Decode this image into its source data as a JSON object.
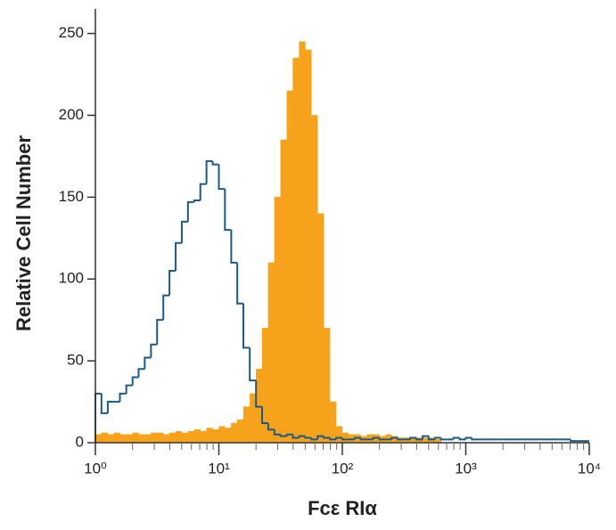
{
  "chart_data": {
    "type": "histogram",
    "xlabel": "Fcε RIα",
    "ylabel": "Relative Cell Number",
    "xscale": "log",
    "xlim": [
      1,
      10000
    ],
    "ylim": [
      0,
      265
    ],
    "yticks": [
      0,
      50,
      100,
      150,
      200,
      250
    ],
    "xticks": [
      {
        "value": 1,
        "label": "10⁰"
      },
      {
        "value": 10,
        "label": "10¹"
      },
      {
        "value": 100,
        "label": "10²"
      },
      {
        "value": 1000,
        "label": "10³"
      },
      {
        "value": 10000,
        "label": "10⁴"
      }
    ],
    "xminorticks": [
      2,
      3,
      4,
      5,
      6,
      7,
      8,
      9,
      20,
      30,
      40,
      50,
      60,
      70,
      80,
      90,
      200,
      300,
      400,
      500,
      600,
      700,
      800,
      900,
      2000,
      3000,
      4000,
      5000,
      6000,
      7000,
      8000,
      9000
    ],
    "bins": [
      1,
      1.12,
      1.26,
      1.41,
      1.58,
      1.78,
      2.0,
      2.24,
      2.51,
      2.82,
      3.16,
      3.55,
      3.98,
      4.47,
      5.01,
      5.62,
      6.31,
      7.08,
      7.94,
      8.91,
      10,
      11.2,
      12.6,
      14.1,
      15.8,
      17.8,
      20.0,
      22.4,
      25.1,
      28.2,
      31.6,
      35.5,
      39.8,
      44.7,
      50.1,
      56.2,
      63.1,
      70.8,
      79.4,
      89.1,
      100,
      112,
      126,
      141,
      158,
      178,
      200,
      224,
      251,
      282,
      316,
      355,
      398,
      447,
      501,
      562,
      631,
      708,
      794,
      891,
      1000,
      1120,
      1260,
      1410,
      1580,
      1780,
      2000,
      2240,
      2510,
      2820,
      3160,
      3550,
      3980,
      4470,
      5010,
      5620,
      6310,
      7080,
      7940,
      8910,
      10000
    ],
    "series": [
      {
        "color": "#f7a21b",
        "style": "filled",
        "values": [
          5,
          6,
          5,
          6,
          5,
          5,
          6,
          5,
          5,
          6,
          6,
          5,
          6,
          7,
          6,
          7,
          8,
          7,
          9,
          8,
          10,
          9,
          12,
          14,
          22,
          30,
          45,
          70,
          110,
          150,
          185,
          215,
          235,
          245,
          240,
          200,
          140,
          70,
          25,
          10,
          6,
          5,
          5,
          4,
          5,
          5,
          4,
          5,
          4,
          3,
          3,
          3,
          3,
          3,
          3,
          2,
          0,
          0,
          0,
          0,
          0,
          0,
          0,
          0,
          0,
          0,
          0,
          0,
          0,
          0,
          0,
          0,
          0,
          0,
          0,
          0,
          0,
          0,
          0,
          0
        ]
      },
      {
        "color": "#1a5a8a",
        "style": "outline",
        "values": [
          30,
          18,
          25,
          25,
          30,
          35,
          40,
          45,
          52,
          60,
          75,
          90,
          105,
          122,
          135,
          147,
          148,
          158,
          172,
          170,
          155,
          130,
          110,
          85,
          58,
          38,
          22,
          12,
          8,
          5,
          4,
          5,
          3,
          4,
          3,
          2,
          4,
          3,
          2,
          3,
          2,
          2,
          3,
          2,
          2,
          3,
          2,
          2,
          3,
          2,
          2,
          3,
          2,
          4,
          2,
          3,
          2,
          2,
          3,
          2,
          3,
          2,
          2,
          2,
          2,
          2,
          2,
          2,
          2,
          2,
          2,
          2,
          2,
          2,
          2,
          2,
          2,
          1,
          1,
          1
        ]
      }
    ]
  }
}
